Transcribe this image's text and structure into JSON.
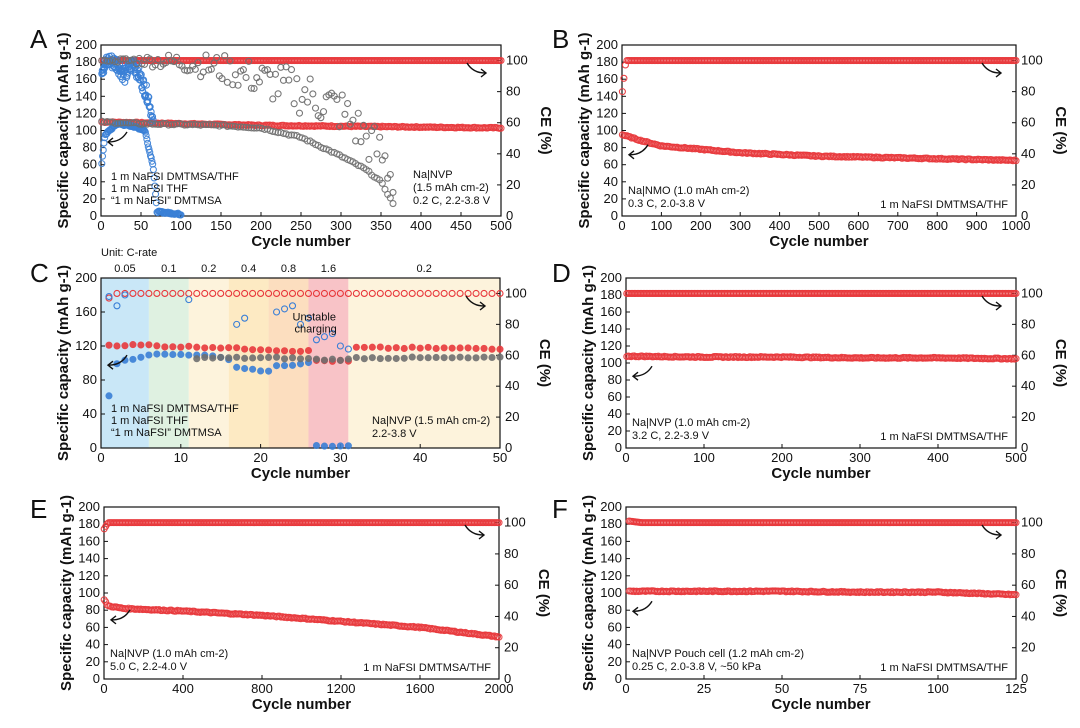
{
  "colors": {
    "dmtmsa_thf": "#e8393c",
    "thf": "#3a7fd6",
    "dmtmsa": "#707070"
  },
  "chart_data": [
    {
      "panel": "A",
      "type": "scatter",
      "xlabel": "Cycle number",
      "ylabel": "Specific capacity (mAh g-1)",
      "y2label": "CE (%)",
      "xlim": [
        0,
        500
      ],
      "ylim": [
        0,
        200
      ],
      "y2lim": [
        0,
        110
      ],
      "xticks": [
        0,
        50,
        100,
        150,
        200,
        250,
        300,
        350,
        400,
        450,
        500
      ],
      "yticks": [
        0,
        20,
        40,
        60,
        80,
        100,
        120,
        140,
        160,
        180,
        200
      ],
      "y2ticks": [
        0,
        20,
        40,
        60,
        80,
        100
      ],
      "legend": [
        "1 m NaFSI DMTMSA/THF",
        "1 m NaFSI THF",
        "“1 m NaFSI” DMTMSA"
      ],
      "notes": [
        "Na|NVP",
        "(1.5 mAh cm-2)",
        "0.2 C, 2.2-3.8 V"
      ],
      "series": [
        {
          "name": "1 m NaFSI DMTMSA/THF",
          "axis": "capacity",
          "x": [
            1,
            100,
            200,
            300,
            400,
            500
          ],
          "values": [
            110,
            108,
            106,
            105,
            104,
            103
          ]
        },
        {
          "name": "1 m NaFSI DMTMSA/THF",
          "axis": "CE",
          "x": [
            1,
            500
          ],
          "values": [
            100,
            100
          ]
        },
        {
          "name": "1 m NaFSI THF",
          "axis": "capacity",
          "x": [
            1,
            5,
            20,
            40,
            55,
            60,
            65,
            70,
            100
          ],
          "values": [
            62,
            95,
            108,
            105,
            100,
            78,
            60,
            5,
            2
          ]
        },
        {
          "name": "1 m NaFSI THF",
          "axis": "CE",
          "x": [
            1,
            10,
            20,
            30,
            40,
            50,
            60,
            65
          ],
          "values": [
            95,
            100,
            98,
            90,
            99,
            88,
            75,
            60
          ]
        },
        {
          "name": "“1 m NaFSI” DMTMSA",
          "axis": "capacity",
          "x": [
            1,
            50,
            100,
            150,
            200,
            250,
            300,
            330,
            350,
            365
          ],
          "values": [
            110,
            108,
            107,
            106,
            103,
            92,
            70,
            55,
            40,
            15
          ]
        },
        {
          "name": "“1 m NaFSI” DMTMSA",
          "axis": "CE",
          "x": [
            1,
            50,
            100,
            150,
            200,
            250,
            300,
            350,
            365
          ],
          "values": [
            100,
            100,
            99,
            95,
            88,
            80,
            68,
            40,
            25
          ]
        }
      ]
    },
    {
      "panel": "B",
      "type": "scatter",
      "xlabel": "Cycle number",
      "ylabel": "Specific capacity (mAh g-1)",
      "y2label": "CE (%)",
      "xlim": [
        0,
        1000
      ],
      "ylim": [
        0,
        200
      ],
      "y2lim": [
        0,
        110
      ],
      "xticks": [
        0,
        100,
        200,
        300,
        400,
        500,
        600,
        700,
        800,
        900,
        1000
      ],
      "yticks": [
        0,
        20,
        40,
        60,
        80,
        100,
        120,
        140,
        160,
        180,
        200
      ],
      "y2ticks": [
        0,
        20,
        40,
        60,
        80,
        100
      ],
      "legend": [
        "1 m NaFSI DMTMSA/THF"
      ],
      "notes": [
        "Na|NMO (1.0 mAh cm-2)",
        "0.3 C, 2.0-3.8 V"
      ],
      "series": [
        {
          "name": "1 m NaFSI DMTMSA/THF",
          "axis": "capacity",
          "x": [
            1,
            50,
            100,
            200,
            300,
            400,
            500,
            600,
            700,
            800,
            900,
            1000
          ],
          "values": [
            95,
            88,
            82,
            78,
            74,
            72,
            70,
            69,
            68,
            67,
            66,
            65
          ]
        },
        {
          "name": "1 m NaFSI DMTMSA/THF",
          "axis": "CE",
          "x": [
            1,
            10,
            1000
          ],
          "values": [
            80,
            100,
            100
          ]
        }
      ]
    },
    {
      "panel": "C",
      "type": "scatter",
      "xlabel": "Cycle number",
      "ylabel": "Specific capacity (mAh g-1)",
      "y2label": "CE (%)",
      "xlim": [
        0,
        50
      ],
      "ylim": [
        0,
        200
      ],
      "y2lim": [
        0,
        110
      ],
      "xticks": [
        0,
        10,
        20,
        30,
        40,
        50
      ],
      "yticks": [
        0,
        40,
        80,
        120,
        160,
        200
      ],
      "y2ticks": [
        0,
        20,
        40,
        60,
        80,
        100
      ],
      "rate_title": "Unit: C-rate",
      "rates": [
        {
          "label": "0.05",
          "from": 0,
          "to": 6,
          "color": "#bfe3f6"
        },
        {
          "label": "0.1",
          "from": 6,
          "to": 11,
          "color": "#d9efdc"
        },
        {
          "label": "0.2",
          "from": 11,
          "to": 16,
          "color": "#fdf1d6"
        },
        {
          "label": "0.4",
          "from": 16,
          "to": 21,
          "color": "#fde6b8"
        },
        {
          "label": "0.8",
          "from": 21,
          "to": 26,
          "color": "#fcd8b4"
        },
        {
          "label": "1.6",
          "from": 26,
          "to": 31,
          "color": "#f7b9bd"
        },
        {
          "label": "0.2",
          "from": 31,
          "to": 50,
          "color": "#fdf1d6"
        }
      ],
      "unstable_label": [
        "Unstable",
        "charging"
      ],
      "legend": [
        "1 m NaFSI DMTMSA/THF",
        "1 m NaFSI THF",
        "“1 m NaFSI” DMTMSA"
      ],
      "notes": [
        "Na|NVP (1.5 mAh cm-2)",
        "2.2-3.8 V"
      ],
      "series": [
        {
          "name": "1 m NaFSI DMTMSA/THF",
          "axis": "capacity",
          "x": [
            1,
            6,
            7,
            11,
            12,
            16,
            17,
            21,
            22,
            26,
            27,
            31,
            32,
            50
          ],
          "values": [
            121,
            121,
            120,
            119,
            119,
            118,
            117,
            116,
            115,
            114,
            103,
            102,
            118,
            117
          ]
        },
        {
          "name": "1 m NaFSI THF",
          "axis": "capacity",
          "x": [
            1,
            2,
            6,
            7,
            11,
            12,
            16,
            17,
            21,
            22,
            26,
            27,
            31
          ],
          "values": [
            62,
            100,
            110,
            110,
            110,
            110,
            105,
            95,
            90,
            96,
            100,
            2,
            2
          ]
        },
        {
          "name": "“1 m NaFSI” DMTMSA",
          "axis": "capacity",
          "x": [
            12,
            16,
            17,
            21,
            22,
            26,
            27,
            31,
            32,
            50
          ],
          "values": [
            106,
            106,
            106,
            106,
            106,
            105,
            104,
            104,
            106,
            106
          ]
        }
      ]
    },
    {
      "panel": "D",
      "type": "scatter",
      "xlabel": "Cycle number",
      "ylabel": "Specific capacity (mAh g-1)",
      "y2label": "CE (%)",
      "xlim": [
        0,
        500
      ],
      "ylim": [
        0,
        200
      ],
      "y2lim": [
        0,
        110
      ],
      "xticks": [
        0,
        100,
        200,
        300,
        400,
        500
      ],
      "yticks": [
        0,
        20,
        40,
        60,
        80,
        100,
        120,
        140,
        160,
        180,
        200
      ],
      "y2ticks": [
        0,
        20,
        40,
        60,
        80,
        100
      ],
      "legend": [
        "1 m NaFSI DMTMSA/THF"
      ],
      "notes": [
        "Na|NVP (1.0 mAh cm-2)",
        "3.2 C, 2.2-3.9 V"
      ],
      "series": [
        {
          "name": "1 m NaFSI DMTMSA/THF",
          "axis": "capacity",
          "x": [
            1,
            100,
            200,
            300,
            400,
            500
          ],
          "values": [
            108,
            107,
            107,
            106,
            106,
            105
          ]
        },
        {
          "name": "1 m NaFSI DMTMSA/THF",
          "axis": "CE",
          "x": [
            1,
            500
          ],
          "values": [
            100,
            100
          ]
        }
      ]
    },
    {
      "panel": "E",
      "type": "scatter",
      "xlabel": "Cycle number",
      "ylabel": "Specific capacity (mAh g-1)",
      "y2label": "CE (%)",
      "xlim": [
        0,
        2000
      ],
      "ylim": [
        0,
        200
      ],
      "y2lim": [
        0,
        110
      ],
      "xticks": [
        0,
        400,
        800,
        1200,
        1600,
        2000
      ],
      "yticks": [
        0,
        20,
        40,
        60,
        80,
        100,
        120,
        140,
        160,
        180,
        200
      ],
      "y2ticks": [
        0,
        20,
        40,
        60,
        80,
        100
      ],
      "legend": [
        "1 m NaFSI DMTMSA/THF"
      ],
      "notes": [
        "Na|NVP (1.0 mAh cm-2)",
        "5.0 C, 2.2-4.0 V"
      ],
      "series": [
        {
          "name": "1 m NaFSI DMTMSA/THF",
          "axis": "capacity",
          "x": [
            1,
            20,
            100,
            400,
            800,
            1200,
            1600,
            2000
          ],
          "values": [
            92,
            85,
            82,
            79,
            74,
            67,
            60,
            49
          ]
        },
        {
          "name": "1 m NaFSI DMTMSA/THF",
          "axis": "CE",
          "x": [
            1,
            20,
            2000
          ],
          "values": [
            96,
            100,
            100
          ]
        }
      ]
    },
    {
      "panel": "F",
      "type": "scatter",
      "xlabel": "Cycle number",
      "ylabel": "Specific capacity (mAh g-1)",
      "y2label": "CE (%)",
      "xlim": [
        0,
        125
      ],
      "ylim": [
        0,
        200
      ],
      "y2lim": [
        0,
        110
      ],
      "xticks": [
        0,
        25,
        50,
        75,
        100,
        125
      ],
      "yticks": [
        0,
        20,
        40,
        60,
        80,
        100,
        120,
        140,
        160,
        180,
        200
      ],
      "y2ticks": [
        0,
        20,
        40,
        60,
        80,
        100
      ],
      "legend": [
        "1 m NaFSI DMTMSA/THF"
      ],
      "notes": [
        "Na|NVP Pouch cell (1.2 mAh cm-2)",
        "0.25 C, 2.0-3.8 V, ~50 kPa"
      ],
      "series": [
        {
          "name": "1 m NaFSI DMTMSA/THF",
          "axis": "capacity",
          "x": [
            1,
            25,
            50,
            75,
            100,
            125
          ],
          "values": [
            102,
            102,
            102,
            101,
            101,
            98
          ]
        },
        {
          "name": "1 m NaFSI DMTMSA/THF",
          "axis": "CE",
          "x": [
            1,
            5,
            125
          ],
          "values": [
            101,
            100,
            100
          ]
        }
      ]
    }
  ]
}
